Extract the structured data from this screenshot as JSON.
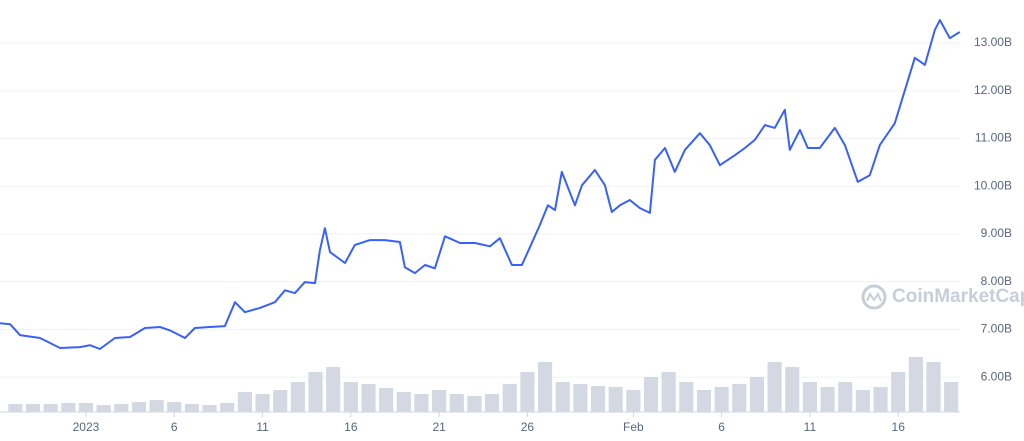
{
  "chart_data": {
    "type": "line",
    "watermark": "CoinMarketCap",
    "color": "#3861fb",
    "grid": true,
    "xlim": [
      -4.87,
      49.5
    ],
    "ylim": [
      5.27,
      13.9
    ],
    "xticks": [
      {
        "value": 0,
        "label": "2023"
      },
      {
        "value": 5,
        "label": "6"
      },
      {
        "value": 10,
        "label": "11"
      },
      {
        "value": 15,
        "label": "16"
      },
      {
        "value": 20,
        "label": "21"
      },
      {
        "value": 25,
        "label": "26"
      },
      {
        "value": 31,
        "label": "Feb"
      },
      {
        "value": 36,
        "label": "6"
      },
      {
        "value": 41,
        "label": "11"
      },
      {
        "value": 46,
        "label": "16"
      }
    ],
    "yticks": [
      {
        "value": 6,
        "label": "6.00B"
      },
      {
        "value": 7,
        "label": "7.00B"
      },
      {
        "value": 8,
        "label": "8.00B"
      },
      {
        "value": 9,
        "label": "9.00B"
      },
      {
        "value": 10,
        "label": "10.00B"
      },
      {
        "value": 11,
        "label": "11.00B"
      },
      {
        "value": 12,
        "label": "12.00B"
      },
      {
        "value": 13,
        "label": "13.00B"
      }
    ],
    "x": [
      -4.87,
      -4.3,
      -3.74,
      -2.6,
      -1.47,
      -0.34,
      0.23,
      0.79,
      1.64,
      2.49,
      3.34,
      4.19,
      4.76,
      5.61,
      6.17,
      7.02,
      7.87,
      8.44,
      9.0,
      9.85,
      10.7,
      11.27,
      11.83,
      12.4,
      12.97,
      13.25,
      13.53,
      13.82,
      14.67,
      15.23,
      16.08,
      16.93,
      17.78,
      18.06,
      18.63,
      19.2,
      19.76,
      20.33,
      21.18,
      22.03,
      22.88,
      23.44,
      24.12,
      24.69,
      25.14,
      25.71,
      26.16,
      26.56,
      26.95,
      27.69,
      28.09,
      28.82,
      29.39,
      29.78,
      30.24,
      30.8,
      31.37,
      31.94,
      32.22,
      32.79,
      33.35,
      33.92,
      34.77,
      35.33,
      35.9,
      36.75,
      37.32,
      37.88,
      38.45,
      39.01,
      39.58,
      39.86,
      40.43,
      40.88,
      41.56,
      42.41,
      42.98,
      43.71,
      44.39,
      44.96,
      45.81,
      46.38,
      46.94,
      47.51,
      48.07,
      48.36,
      48.92,
      49.49
    ],
    "values": [
      7.13,
      7.11,
      6.88,
      6.82,
      6.61,
      6.63,
      6.67,
      6.59,
      6.82,
      6.84,
      7.03,
      7.05,
      6.98,
      6.82,
      7.03,
      7.05,
      7.07,
      7.57,
      7.36,
      7.45,
      7.57,
      7.82,
      7.76,
      7.99,
      7.97,
      8.66,
      9.12,
      8.62,
      8.39,
      8.77,
      8.87,
      8.87,
      8.83,
      8.3,
      8.18,
      8.35,
      8.28,
      8.95,
      8.81,
      8.81,
      8.74,
      8.91,
      8.35,
      8.35,
      8.72,
      9.19,
      9.6,
      9.5,
      10.3,
      9.6,
      10.02,
      10.34,
      10.02,
      9.46,
      9.6,
      9.71,
      9.54,
      9.44,
      10.55,
      10.8,
      10.3,
      10.76,
      11.11,
      10.86,
      10.44,
      10.65,
      10.8,
      10.97,
      11.28,
      11.22,
      11.6,
      10.76,
      11.18,
      10.8,
      10.8,
      11.22,
      10.86,
      10.09,
      10.23,
      10.86,
      11.32,
      12.01,
      12.69,
      12.54,
      13.27,
      13.48,
      13.1,
      13.23
    ],
    "volume": {
      "color": "#d3d8e2",
      "ylim": [
        0,
        100
      ],
      "x": [
        -4,
        -3,
        -2,
        -1,
        0,
        1,
        2,
        3,
        4,
        5,
        6,
        7,
        8,
        9,
        10,
        11,
        12,
        13,
        14,
        15,
        16,
        17,
        18,
        19,
        20,
        21,
        22,
        23,
        24,
        25,
        26,
        27,
        28,
        29,
        30,
        31,
        32,
        33,
        34,
        35,
        36,
        37,
        38,
        39,
        40,
        41,
        42,
        43,
        44,
        45,
        46,
        47,
        48,
        49
      ],
      "values": [
        8,
        8,
        8,
        9,
        9,
        7,
        8,
        10,
        12,
        10,
        8,
        7,
        9,
        20,
        18,
        22,
        30,
        40,
        45,
        30,
        28,
        24,
        20,
        18,
        22,
        18,
        16,
        18,
        28,
        40,
        50,
        30,
        28,
        26,
        25,
        22,
        35,
        40,
        30,
        22,
        25,
        28,
        35,
        50,
        45,
        30,
        25,
        30,
        22,
        25,
        40,
        55,
        50,
        30
      ]
    }
  }
}
